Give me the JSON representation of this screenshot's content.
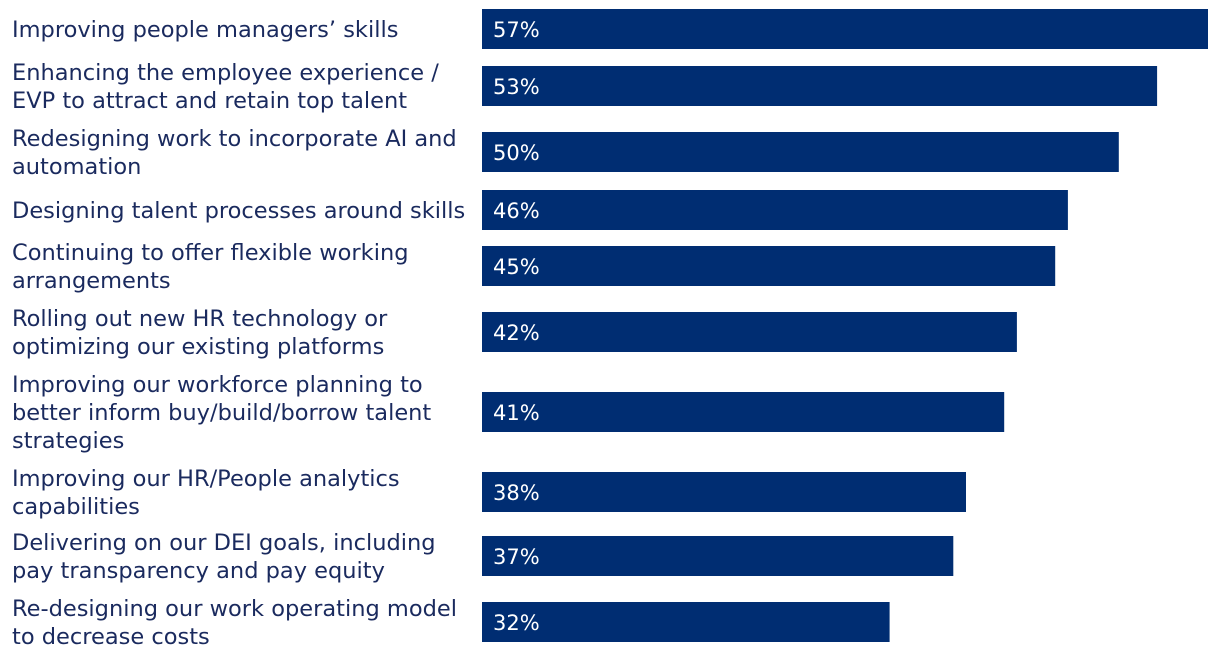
{
  "colors": {
    "bar": "#002d72",
    "label_text": "#1a2a5e",
    "value_text": "#ffffff",
    "background": "#ffffff"
  },
  "chart_data": {
    "type": "bar",
    "orientation": "horizontal",
    "title": "",
    "xlabel": "",
    "ylabel": "",
    "xlim": [
      0,
      57
    ],
    "grid": false,
    "legend": "none",
    "value_suffix": "%",
    "categories": [
      [
        "Improving people managers’ skills"
      ],
      [
        "Enhancing the employee experience /",
        "EVP to attract and retain top talent"
      ],
      [
        "Redesigning work to incorporate AI and",
        "automation"
      ],
      [
        "Designing talent processes around skills"
      ],
      [
        "Continuing to offer flexible working",
        "arrangements"
      ],
      [
        "Rolling out new HR technology or",
        "optimizing our existing platforms"
      ],
      [
        "Improving our workforce planning to",
        "better inform buy/build/borrow talent",
        "strategies"
      ],
      [
        "Improving our HR/People analytics",
        "capabilities"
      ],
      [
        "Delivering on our DEI goals, including",
        "pay transparency and pay equity"
      ],
      [
        "Re-designing our work operating model",
        "to decrease costs"
      ]
    ],
    "values": [
      57,
      53,
      50,
      46,
      45,
      42,
      41,
      38,
      37,
      32
    ]
  }
}
